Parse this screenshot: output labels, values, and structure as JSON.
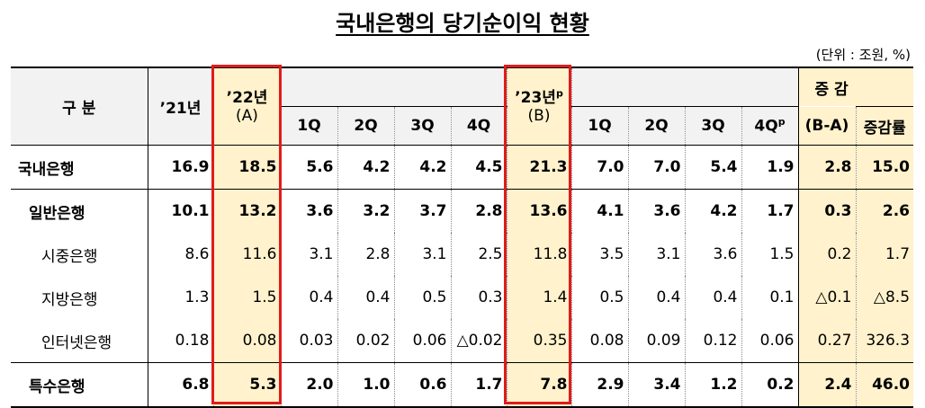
{
  "title": "국내은행의 당기순이익 현황",
  "unit": "(단위 : 조원, %)",
  "header": {
    "category": "구  분",
    "y21": "’21년",
    "y22": "’22년",
    "y22_sub": "(A)",
    "y23": "’23년",
    "y23_sup": "p",
    "y23_sub": "(B)",
    "diff": "증  감",
    "diff_sub": "(B-A)",
    "rate": "증감률",
    "q22": [
      "1Q",
      "2Q",
      "3Q",
      "4Q"
    ],
    "q23": [
      "1Q",
      "2Q",
      "3Q",
      "4Q"
    ],
    "q23_last_sup": "p"
  },
  "rows": [
    {
      "label": "국내은행",
      "y21": "16.9",
      "y22": "18.5",
      "q22": [
        "5.6",
        "4.2",
        "4.2",
        "4.5"
      ],
      "y23": "21.3",
      "q23": [
        "7.0",
        "7.0",
        "5.4",
        "1.9"
      ],
      "diff": "2.8",
      "rate": "15.0"
    },
    {
      "label": "일반은행",
      "y21": "10.1",
      "y22": "13.2",
      "q22": [
        "3.6",
        "3.2",
        "3.7",
        "2.8"
      ],
      "y23": "13.6",
      "q23": [
        "4.1",
        "3.6",
        "4.2",
        "1.7"
      ],
      "diff": "0.3",
      "rate": "2.6"
    },
    {
      "label": "시중은행",
      "y21": "8.6",
      "y22": "11.6",
      "q22": [
        "3.1",
        "2.8",
        "3.1",
        "2.5"
      ],
      "y23": "11.8",
      "q23": [
        "3.5",
        "3.1",
        "3.6",
        "1.5"
      ],
      "diff": "0.2",
      "rate": "1.7"
    },
    {
      "label": "지방은행",
      "y21": "1.3",
      "y22": "1.5",
      "q22": [
        "0.4",
        "0.4",
        "0.5",
        "0.3"
      ],
      "y23": "1.4",
      "q23": [
        "0.5",
        "0.4",
        "0.4",
        "0.1"
      ],
      "diff": "△0.1",
      "rate": "△8.5"
    },
    {
      "label": "인터넷은행",
      "y21": "0.18",
      "y22": "0.08",
      "q22": [
        "0.03",
        "0.02",
        "0.06",
        "△0.02"
      ],
      "y23": "0.35",
      "q23": [
        "0.08",
        "0.09",
        "0.12",
        "0.06"
      ],
      "diff": "0.27",
      "rate": "326.3"
    },
    {
      "label": "특수은행",
      "y21": "6.8",
      "y22": "5.3",
      "q22": [
        "2.0",
        "1.0",
        "0.6",
        "1.7"
      ],
      "y23": "7.8",
      "q23": [
        "2.9",
        "3.4",
        "1.2",
        "0.2"
      ],
      "diff": "2.4",
      "rate": "46.0"
    }
  ]
}
